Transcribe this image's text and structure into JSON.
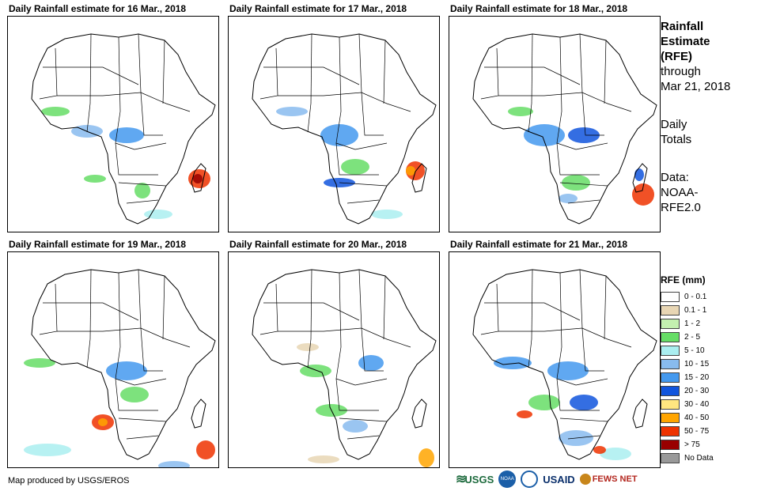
{
  "panels": [
    {
      "title": "Daily Rainfall estimate for 16 Mar., 2018"
    },
    {
      "title": "Daily Rainfall estimate for 17 Mar., 2018"
    },
    {
      "title": "Daily Rainfall estimate for 18 Mar., 2018"
    },
    {
      "title": "Daily Rainfall estimate for 19 Mar., 2018"
    },
    {
      "title": "Daily Rainfall estimate for 20 Mar., 2018"
    },
    {
      "title": "Daily Rainfall estimate for 21 Mar., 2018"
    }
  ],
  "side": {
    "title1": "Rainfall",
    "title2": "Estimate",
    "title3": "(RFE)",
    "through": "through",
    "date": "Mar 21, 2018",
    "daily": "Daily",
    "totals": "Totals",
    "data_label": "Data:",
    "data1": "NOAA-",
    "data2": "RFE2.0"
  },
  "legend": {
    "title": "RFE (mm)",
    "items": [
      {
        "label": "0 - 0.1",
        "color": "#ffffff"
      },
      {
        "label": "0.1 - 1",
        "color": "#e8d6b4"
      },
      {
        "label": "1 - 2",
        "color": "#c4f0b0"
      },
      {
        "label": "2 - 5",
        "color": "#66dd66"
      },
      {
        "label": "5 - 10",
        "color": "#aaeef0"
      },
      {
        "label": "10 - 15",
        "color": "#88bbee"
      },
      {
        "label": "15 - 20",
        "color": "#4499ee"
      },
      {
        "label": "20 - 30",
        "color": "#1155dd"
      },
      {
        "label": "30 - 40",
        "color": "#ffe680"
      },
      {
        "label": "40 - 50",
        "color": "#ffa500"
      },
      {
        "label": "50 - 75",
        "color": "#ee3300"
      },
      {
        "label": "> 75",
        "color": "#990000"
      },
      {
        "label": "No Data",
        "color": "#999999"
      }
    ]
  },
  "credit": "Map produced by USGS/EROS",
  "logos": {
    "usgs": "USGS",
    "noaa": "NOAA",
    "usaid": "USAID",
    "fewsnet": "FEWS NET"
  }
}
